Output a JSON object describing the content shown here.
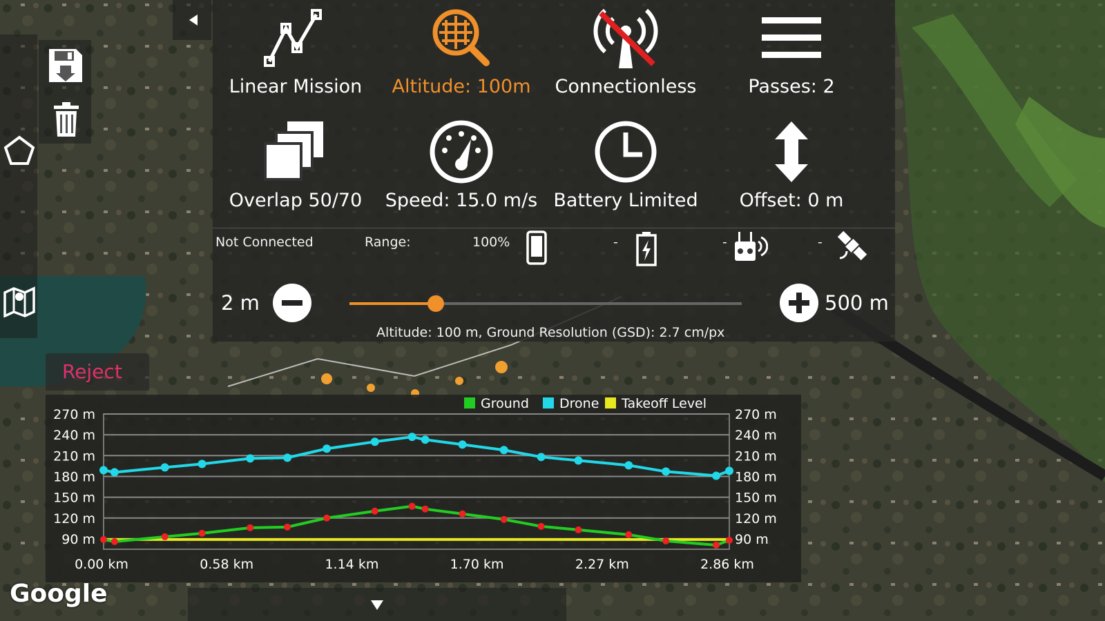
{
  "toolbar": {
    "linear_mission": "Linear Mission",
    "altitude": "Altitude: 100m",
    "connection": "Connectionless",
    "passes": "Passes: 2",
    "overlap": "Overlap 50/70",
    "speed": "Speed: 15.0 m/s",
    "battery": "Battery Limited",
    "offset": "Offset: 0 m"
  },
  "status": {
    "connection": "Not Connected",
    "range_label": "Range:",
    "phone_battery": "100%",
    "drone_battery": "-",
    "remote": "-",
    "gps": "-"
  },
  "slider": {
    "min_label": "2 m",
    "max_label": "500 m",
    "value_fraction": 0.22,
    "gsd_text": "Altitude: 100 m, Ground Resolution (GSD): 2.7 cm/px"
  },
  "reject_label": "Reject",
  "google_label": "Google",
  "colors": {
    "accent": "#f0902a",
    "reject": "#e0306a",
    "ground": "#22cc22",
    "drone": "#22d8e8",
    "takeoff": "#e8e820"
  },
  "chart_data": {
    "type": "line",
    "legend": [
      "Ground",
      "Drone",
      "Takeoff Level"
    ],
    "legend_position": "top-right",
    "y_ticks": [
      "270 m",
      "240 m",
      "210 m",
      "180 m",
      "150 m",
      "120 m",
      "90 m"
    ],
    "y_tick_values": [
      270,
      240,
      210,
      180,
      150,
      120,
      90
    ],
    "x_ticks": [
      "0.00 km",
      "0.58 km",
      "1.14 km",
      "1.70 km",
      "2.27 km",
      "2.86 km"
    ],
    "ylim": [
      75,
      270
    ],
    "xlim": [
      0,
      2.86
    ],
    "x": [
      0.0,
      0.05,
      0.28,
      0.45,
      0.67,
      0.84,
      1.02,
      1.24,
      1.41,
      1.47,
      1.64,
      1.83,
      2.0,
      2.17,
      2.4,
      2.57,
      2.8,
      2.86
    ],
    "series": [
      {
        "name": "Drone",
        "values": [
          189,
          186,
          193,
          198,
          206,
          207,
          220,
          230,
          237,
          233,
          226,
          218,
          208,
          203,
          196,
          187,
          181,
          188
        ]
      },
      {
        "name": "Ground",
        "values": [
          89,
          86,
          93,
          98,
          106,
          107,
          120,
          130,
          137,
          133,
          126,
          118,
          108,
          103,
          96,
          87,
          81,
          88
        ]
      },
      {
        "name": "Takeoff Level",
        "values": [
          89,
          89,
          89,
          89,
          89,
          89,
          89,
          89,
          89,
          89,
          89,
          89,
          89,
          89,
          89,
          89,
          89,
          89
        ]
      }
    ]
  }
}
